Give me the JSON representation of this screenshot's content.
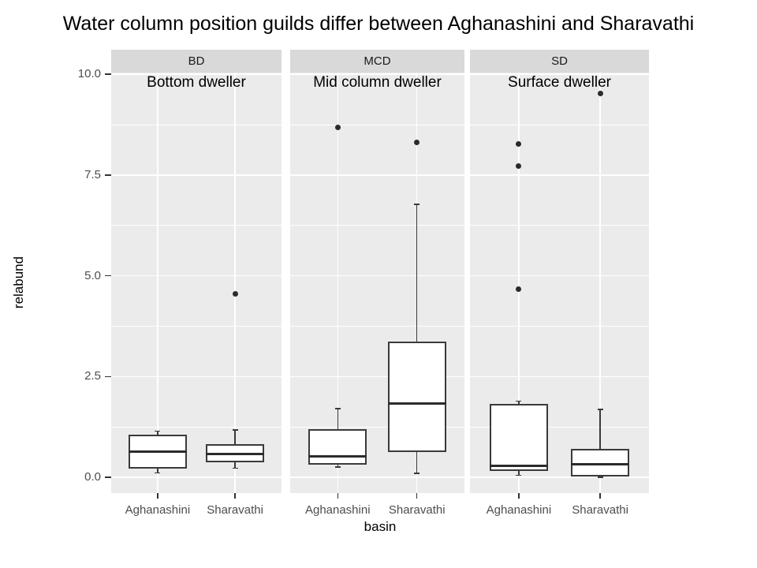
{
  "slide": {
    "title": "Water column position guilds differ between Aghanashini and Sharavathi"
  },
  "chart_data": {
    "type": "boxplot",
    "title": "Water column position guilds differ between Aghanashini and Sharavathi",
    "xlabel": "basin",
    "ylabel": "relabund",
    "grid": true,
    "legend": null,
    "y_axis": {
      "tick_labels": [
        "10.0",
        "7.5",
        "5.0",
        "2.5",
        "0.0"
      ],
      "tick_values": [
        10.0,
        7.5,
        5.0,
        2.5,
        0.0
      ],
      "minor_values": [
        8.75,
        6.25,
        3.75,
        1.25
      ],
      "range": [
        -0.39,
        10.04
      ]
    },
    "categories": [
      "Aghanashini",
      "Sharavathi"
    ],
    "facets": [
      {
        "strip": "BD",
        "annotation": "Bottom dweller",
        "boxes": [
          {
            "group": "Aghanashini",
            "whisker_low": 0.11,
            "q1": 0.22,
            "median": 0.63,
            "q3": 1.06,
            "whisker_high": 1.15,
            "outliers": []
          },
          {
            "group": "Sharavathi",
            "whisker_low": 0.23,
            "q1": 0.37,
            "median": 0.57,
            "q3": 0.82,
            "whisker_high": 1.17,
            "outliers": [
              4.56
            ]
          }
        ]
      },
      {
        "strip": "MCD",
        "annotation": "Mid column dweller",
        "boxes": [
          {
            "group": "Aghanashini",
            "whisker_low": 0.25,
            "q1": 0.31,
            "median": 0.52,
            "q3": 1.19,
            "whisker_high": 1.7,
            "outliers": [
              8.69
            ]
          },
          {
            "group": "Sharavathi",
            "whisker_low": 0.1,
            "q1": 0.63,
            "median": 1.83,
            "q3": 3.37,
            "whisker_high": 6.77,
            "outliers": [
              8.32
            ]
          }
        ]
      },
      {
        "strip": "SD",
        "annotation": "Surface dweller",
        "boxes": [
          {
            "group": "Aghanashini",
            "whisker_low": 0.05,
            "q1": 0.16,
            "median": 0.29,
            "q3": 1.83,
            "whisker_high": 1.89,
            "outliers": [
              4.66,
              7.72,
              8.28
            ]
          },
          {
            "group": "Sharavathi",
            "whisker_low": 0.0,
            "q1": 0.02,
            "median": 0.33,
            "q3": 0.7,
            "whisker_high": 1.68,
            "outliers": [
              9.52
            ]
          }
        ]
      }
    ],
    "colors": {
      "panel_bg": "#EBEBEB",
      "strip_bg": "#D9D9D9",
      "gridline": "#FFFFFF",
      "box_fill": "#FFFFFF",
      "box_line": "#3A3A3A",
      "axis_text": "#4D4D4D",
      "tick_mark": "#333333",
      "text": "#000000"
    }
  }
}
